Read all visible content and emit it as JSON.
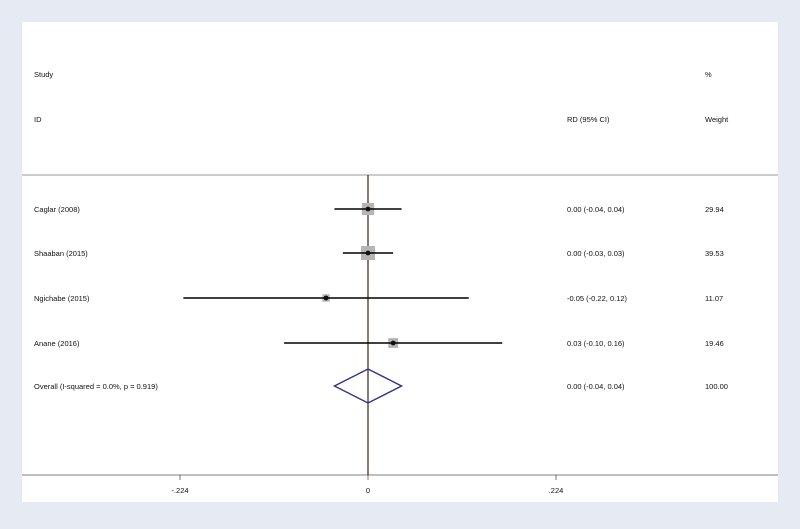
{
  "header": {
    "study_line1": "Study",
    "study_line2": "ID",
    "effect_label": "RD (95% CI)",
    "weight_line1": "%",
    "weight_line2": "Weight"
  },
  "chart_data": {
    "type": "forest",
    "xlim": [
      -0.224,
      0.224
    ],
    "null_line": 0,
    "x_tick_labels": [
      "-.224",
      "0",
      ".224"
    ],
    "x_ticks": [
      -0.224,
      0,
      0.224
    ],
    "studies": [
      {
        "label": "Caglar (2008)",
        "rd": 0.0,
        "lower": -0.04,
        "upper": 0.04,
        "ci_text": "0.00 (-0.04, 0.04)",
        "weight": 29.94,
        "weight_text": "29.94"
      },
      {
        "label": "Shaaban (2015)",
        "rd": 0.0,
        "lower": -0.03,
        "upper": 0.03,
        "ci_text": "0.00 (-0.03, 0.03)",
        "weight": 39.53,
        "weight_text": "39.53"
      },
      {
        "label": "Ngichabe (2015)",
        "rd": -0.05,
        "lower": -0.22,
        "upper": 0.12,
        "ci_text": "-0.05 (-0.22, 0.12)",
        "weight": 11.07,
        "weight_text": "11.07"
      },
      {
        "label": "Anane (2016)",
        "rd": 0.03,
        "lower": -0.1,
        "upper": 0.16,
        "ci_text": "0.03 (-0.10, 0.16)",
        "weight": 19.46,
        "weight_text": "19.46"
      }
    ],
    "overall": {
      "label": "Overall  (I-squared = 0.0%, p = 0.919)",
      "rd": 0.0,
      "lower": -0.04,
      "upper": 0.04,
      "ci_text": "0.00 (-0.04, 0.04)",
      "weight_text": "100.00"
    },
    "colors": {
      "background": "#ffffff",
      "null_line": "#3a2416",
      "diamond": "#2e3588",
      "ci_line": "#000000",
      "weight_box": "#b5b5b5"
    }
  }
}
